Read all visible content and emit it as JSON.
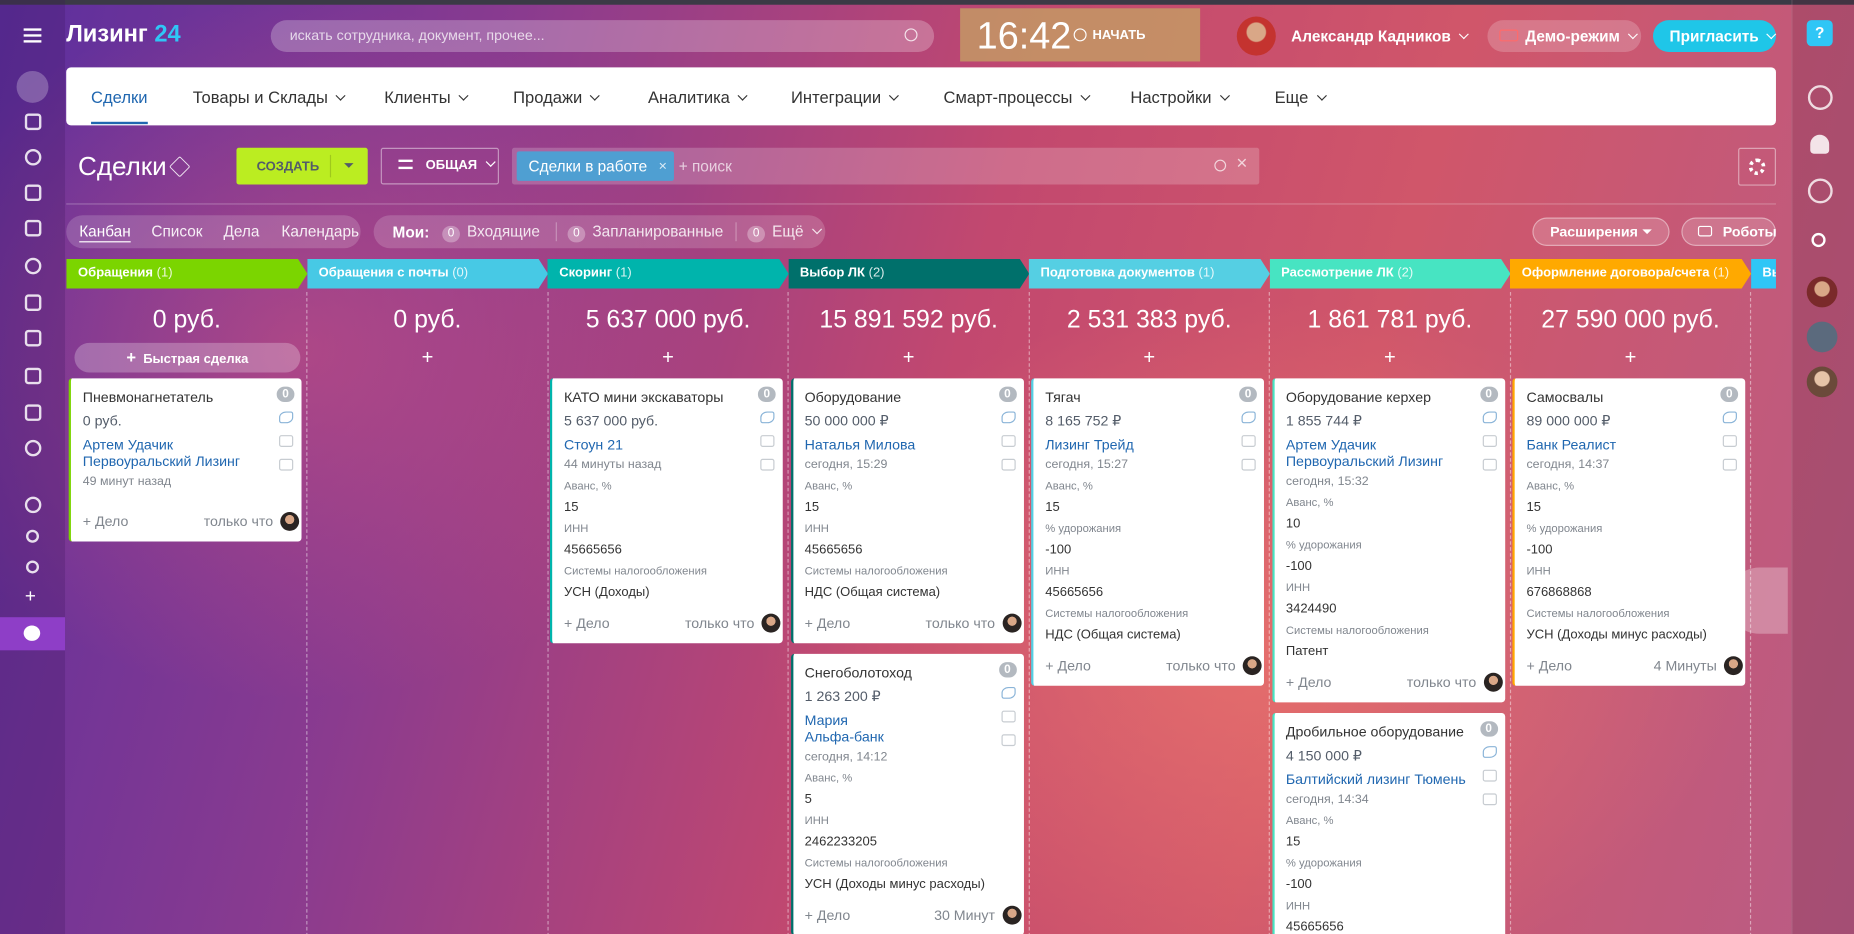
{
  "header": {
    "logo": "Лизинг",
    "logo_number": "24",
    "search_placeholder": "искать сотрудника, документ, прочее...",
    "time": "16:42",
    "start": "НАЧАТЬ",
    "user_name": "Александр Кадников",
    "demo": "Демо-режим",
    "invite": "Пригласить"
  },
  "nav": {
    "items": [
      "Сделки",
      "Товары и Склады",
      "Клиенты",
      "Продажи",
      "Аналитика",
      "Интеграции",
      "Смарт-процессы",
      "Настройки",
      "Еще"
    ]
  },
  "toolbar": {
    "title": "Сделки",
    "create": "СОЗДАТЬ",
    "preset": "ОБЩАЯ",
    "filter_tag": "Сделки в работе",
    "search_placeholder": "+ поиск"
  },
  "views": {
    "items": [
      "Канбан",
      "Список",
      "Дела",
      "Календарь"
    ],
    "my_label": "Мои:",
    "counters": [
      {
        "count": 0,
        "label": "Входящие"
      },
      {
        "count": 0,
        "label": "Запланированные"
      },
      {
        "count": 0,
        "label": "Ещё"
      }
    ],
    "extensions": "Расширения",
    "robots": "Роботы"
  },
  "kanban": {
    "columns": [
      {
        "name": "Обращения",
        "count": "(1)",
        "color": "#7bd500",
        "total": "0 руб.",
        "quick_deal": "Быстрая сделка",
        "cards": [
          {
            "title": "Пневмонагнетатель",
            "amount": "0 руб.",
            "contacts": [
              "Артем Удачик",
              "Первоуральский Лизинг"
            ],
            "date": "49 минут назад",
            "fields": [],
            "add_activity": "+ Дело",
            "time": "только что",
            "counter": 0
          }
        ]
      },
      {
        "name": "Обращения с почты",
        "count": "(0)",
        "color": "#47c9e5",
        "total": "0 руб.",
        "cards": []
      },
      {
        "name": "Скоринг",
        "count": "(1)",
        "color": "#00b4ac",
        "total": "5 637 000 руб.",
        "cards": [
          {
            "title": "КАТО мини экскаваторы",
            "amount": "5 637 000 руб.",
            "contacts": [
              "Стоун 21"
            ],
            "date": "44 минуты назад",
            "fields": [
              {
                "label": "Аванс, %",
                "value": "15"
              },
              {
                "label": "ИНН",
                "value": "45665656"
              },
              {
                "label": "Системы налогообложения",
                "value": "УСН (Доходы)"
              }
            ],
            "add_activity": "+ Дело",
            "time": "только что",
            "counter": 0
          }
        ]
      },
      {
        "name": "Выбор ЛК",
        "count": "(2)",
        "color": "#00706b",
        "total": "15 891 592 руб.",
        "cards": [
          {
            "title": "Оборудование",
            "amount": "50 000 000 ₽",
            "contacts": [
              "Наталья Милова"
            ],
            "date": "сегодня, 15:29",
            "fields": [
              {
                "label": "Аванс, %",
                "value": "15"
              },
              {
                "label": "ИНН",
                "value": "45665656"
              },
              {
                "label": "Системы налогообложения",
                "value": "НДС (Общая система)"
              }
            ],
            "add_activity": "+ Дело",
            "time": "только что",
            "counter": 0
          },
          {
            "title": "Снегоболотоход",
            "amount": "1 263 200 ₽",
            "contacts": [
              "Мария",
              "Альфа-банк"
            ],
            "date": "сегодня, 14:12",
            "fields": [
              {
                "label": "Аванс, %",
                "value": "5"
              },
              {
                "label": "ИНН",
                "value": "2462233205"
              },
              {
                "label": "Системы налогообложения",
                "value": "УСН (Доходы минус расходы)"
              }
            ],
            "add_activity": "+ Дело",
            "time": "30 Минут",
            "counter": 0
          }
        ]
      },
      {
        "name": "Подготовка документов",
        "count": "(1)",
        "color": "#55cfe3",
        "total": "2 531 383 руб.",
        "cards": [
          {
            "title": "Тягач",
            "amount": "8 165 752 ₽",
            "contacts": [
              "Лизинг Трейд"
            ],
            "date": "сегодня, 15:27",
            "fields": [
              {
                "label": "Аванс, %",
                "value": "15"
              },
              {
                "label": "% удорожания",
                "value": "-100"
              },
              {
                "label": "ИНН",
                "value": "45665656"
              },
              {
                "label": "Системы налогообложения",
                "value": "НДС (Общая система)"
              }
            ],
            "add_activity": "+ Дело",
            "time": "только что",
            "counter": 0
          }
        ]
      },
      {
        "name": "Рассмотрение ЛК",
        "count": "(2)",
        "color": "#47e4c2",
        "total": "1 861 781 руб.",
        "cards": [
          {
            "title": "Оборудование керхер",
            "amount": "1 855 744 ₽",
            "contacts": [
              "Артем Удачик",
              "Первоуральский Лизинг"
            ],
            "date": "сегодня, 15:32",
            "fields": [
              {
                "label": "Аванс, %",
                "value": "10"
              },
              {
                "label": "% удорожания",
                "value": "-100"
              },
              {
                "label": "ИНН",
                "value": "3424490"
              },
              {
                "label": "Системы налогообложения",
                "value": "Патент"
              }
            ],
            "add_activity": "+ Дело",
            "time": "только что",
            "counter": 0
          },
          {
            "title": "Дробильное оборудование",
            "amount": "4 150 000 ₽",
            "contacts": [
              "Балтийский лизинг Тюмень"
            ],
            "date": "сегодня, 14:34",
            "fields": [
              {
                "label": "Аванс, %",
                "value": "15"
              },
              {
                "label": "% удорожания",
                "value": "-100"
              },
              {
                "label": "ИНН",
                "value": "45665656"
              }
            ],
            "counter": 0
          }
        ]
      },
      {
        "name": "Оформление договора/счета",
        "count": "(1)",
        "color": "#ffa900",
        "total": "27 590 000 руб.",
        "cards": [
          {
            "title": "Самосвалы",
            "amount": "89 000 000 ₽",
            "contacts": [
              "Банк Реалист"
            ],
            "date": "сегодня, 14:37",
            "fields": [
              {
                "label": "Аванс, %",
                "value": "15"
              },
              {
                "label": "% удорожания",
                "value": "-100"
              },
              {
                "label": "ИНН",
                "value": "676868868"
              },
              {
                "label": "Системы налогообложения",
                "value": "УСН (Доходы минус расходы)"
              }
            ],
            "add_activity": "+ Дело",
            "time": "4 Минуты",
            "counter": 0
          }
        ]
      },
      {
        "name": "Вы",
        "color": "#2fc6f6",
        "cards": []
      }
    ]
  }
}
